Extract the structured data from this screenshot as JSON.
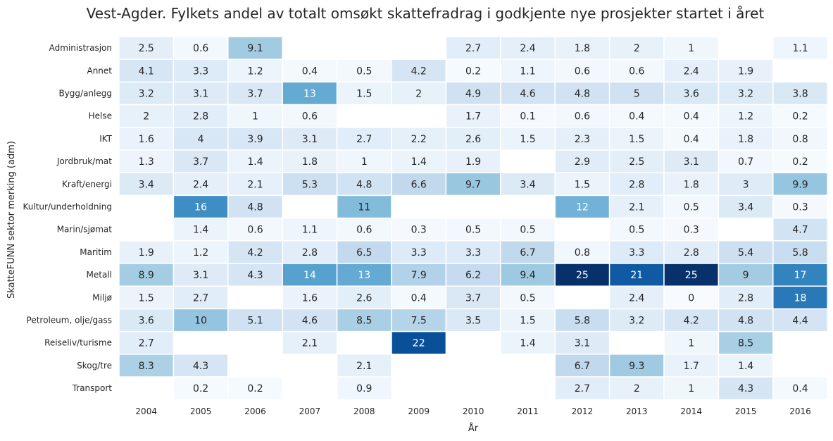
{
  "chart_data": {
    "type": "heatmap",
    "title": "Vest-Agder. Fylkets andel av totalt omsøkt skattefradrag i godkjente nye prosjekter startet i året",
    "xlabel": "År",
    "ylabel": "SkatteFUNN sektor merking (adm)",
    "colormap": "Blues",
    "color_range": [
      0,
      25
    ],
    "columns": [
      "2004",
      "2005",
      "2006",
      "2007",
      "2008",
      "2009",
      "2010",
      "2011",
      "2012",
      "2013",
      "2014",
      "2015",
      "2016"
    ],
    "rows": [
      "Administrasjon",
      "Annet",
      "Bygg/anlegg",
      "Helse",
      "IKT",
      "Jordbruk/mat",
      "Kraft/energi",
      "Kultur/underholdning",
      "Marin/sjømat",
      "Maritim",
      "Metall",
      "Miljø",
      "Petroleum, olje/gass",
      "Reiseliv/turisme",
      "Skog/tre",
      "Transport"
    ],
    "values": [
      [
        2.5,
        0.6,
        9.1,
        null,
        null,
        null,
        2.7,
        2.4,
        1.8,
        2,
        1,
        null,
        1.1
      ],
      [
        4.1,
        3.3,
        1.2,
        0.4,
        0.5,
        4.2,
        0.2,
        1.1,
        0.6,
        0.6,
        2.4,
        1.9,
        null
      ],
      [
        3.2,
        3.1,
        3.7,
        13,
        1.5,
        2,
        4.9,
        4.6,
        4.8,
        5,
        3.6,
        3.2,
        3.8
      ],
      [
        2,
        2.8,
        1,
        0.6,
        null,
        null,
        1.7,
        0.1,
        0.6,
        0.4,
        0.4,
        1.2,
        0.2
      ],
      [
        1.6,
        4,
        3.9,
        3.1,
        2.7,
        2.2,
        2.6,
        1.5,
        2.3,
        1.5,
        0.4,
        1.8,
        0.8
      ],
      [
        1.3,
        3.7,
        1.4,
        1.8,
        1,
        1.4,
        1.9,
        null,
        2.9,
        2.5,
        3.1,
        0.7,
        0.2
      ],
      [
        3.4,
        2.4,
        2.1,
        5.3,
        4.8,
        6.6,
        9.7,
        3.4,
        1.5,
        2.8,
        1.8,
        3,
        9.9
      ],
      [
        null,
        16,
        4.8,
        null,
        11,
        null,
        null,
        null,
        12,
        2.1,
        0.5,
        3.4,
        0.3
      ],
      [
        null,
        1.4,
        0.6,
        1.1,
        0.6,
        0.3,
        0.5,
        0.5,
        null,
        0.5,
        0.3,
        null,
        4.7
      ],
      [
        1.9,
        1.2,
        4.2,
        2.8,
        6.5,
        3.3,
        3.3,
        6.7,
        0.8,
        3.3,
        2.8,
        5.4,
        5.8
      ],
      [
        8.9,
        3.1,
        4.3,
        14,
        13,
        7.9,
        6.2,
        9.4,
        25,
        21,
        25,
        9,
        17
      ],
      [
        1.5,
        2.7,
        null,
        1.6,
        2.6,
        0.4,
        3.7,
        0.5,
        null,
        2.4,
        0,
        2.8,
        18
      ],
      [
        3.6,
        10,
        5.1,
        4.6,
        8.5,
        7.5,
        3.5,
        1.5,
        5.8,
        3.2,
        4.2,
        4.8,
        4.4
      ],
      [
        2.7,
        null,
        null,
        2.1,
        null,
        22,
        null,
        1.4,
        3.1,
        null,
        1,
        8.5,
        null
      ],
      [
        8.3,
        4.3,
        null,
        null,
        2.1,
        null,
        null,
        null,
        6.7,
        9.3,
        1.7,
        1.4,
        null
      ],
      [
        null,
        0.2,
        0.2,
        null,
        0.9,
        null,
        null,
        null,
        2.7,
        2,
        1,
        4.3,
        0.4
      ]
    ],
    "grid": false,
    "legend": "none"
  }
}
